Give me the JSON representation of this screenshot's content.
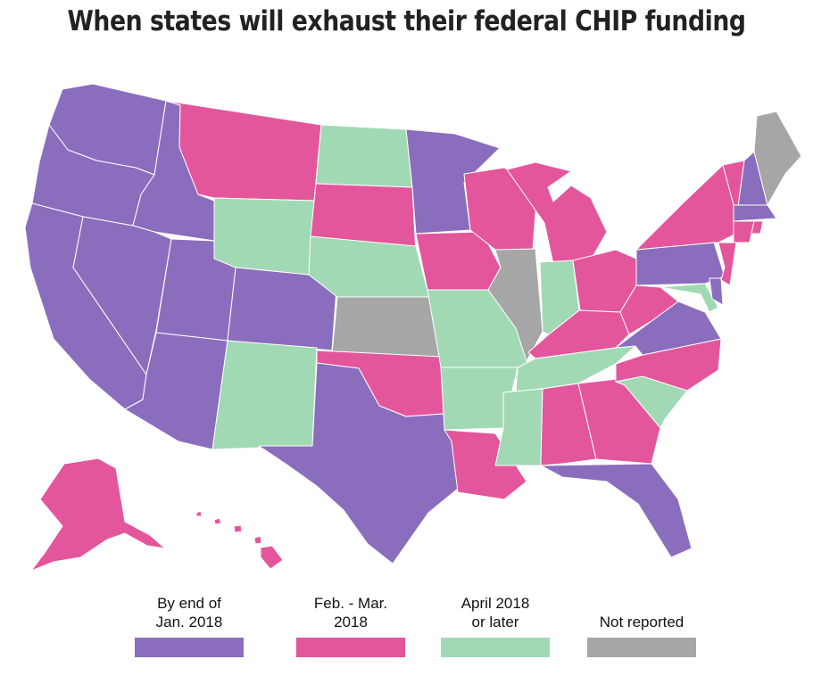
{
  "title": "When states will exhaust their federal CHIP funding",
  "colors": {
    "jan": "#8b6dbd",
    "febmar": "#e3569c",
    "april": "#a2d9b5",
    "none": "#a6a6a6"
  },
  "legend": [
    {
      "label_line1": "By end of",
      "label_line2": "Jan. 2018",
      "color_key": "jan"
    },
    {
      "label_line1": "Feb. - Mar.",
      "label_line2": "2018",
      "color_key": "febmar"
    },
    {
      "label_line1": "April 2018",
      "label_line2": "or later",
      "color_key": "april"
    },
    {
      "label_line1": "",
      "label_line2": "Not reported",
      "color_key": "none"
    }
  ],
  "states": {
    "WA": "jan",
    "OR": "jan",
    "CA": "jan",
    "ID": "jan",
    "NV": "jan",
    "UT": "jan",
    "AZ": "jan",
    "CO": "jan",
    "TX": "jan",
    "MN": "jan",
    "FL": "jan",
    "VA": "jan",
    "PA": "jan",
    "NH": "jan",
    "MA": "jan",
    "DE": "jan",
    "MT": "febmar",
    "SD": "febmar",
    "IA": "febmar",
    "WI": "febmar",
    "MI": "febmar",
    "OH": "febmar",
    "KY": "febmar",
    "WV": "febmar",
    "NC": "febmar",
    "GA": "febmar",
    "AL": "febmar",
    "LA": "febmar",
    "OK": "febmar",
    "NY": "febmar",
    "VT": "febmar",
    "CT": "febmar",
    "RI": "febmar",
    "NJ": "febmar",
    "AK": "febmar",
    "HI": "febmar",
    "WY": "april",
    "ND": "april",
    "NE": "april",
    "NM": "april",
    "MO": "april",
    "AR": "april",
    "IN": "april",
    "TN": "april",
    "MS": "april",
    "SC": "april",
    "MD": "april",
    "KS": "none",
    "IL": "none",
    "ME": "none"
  }
}
